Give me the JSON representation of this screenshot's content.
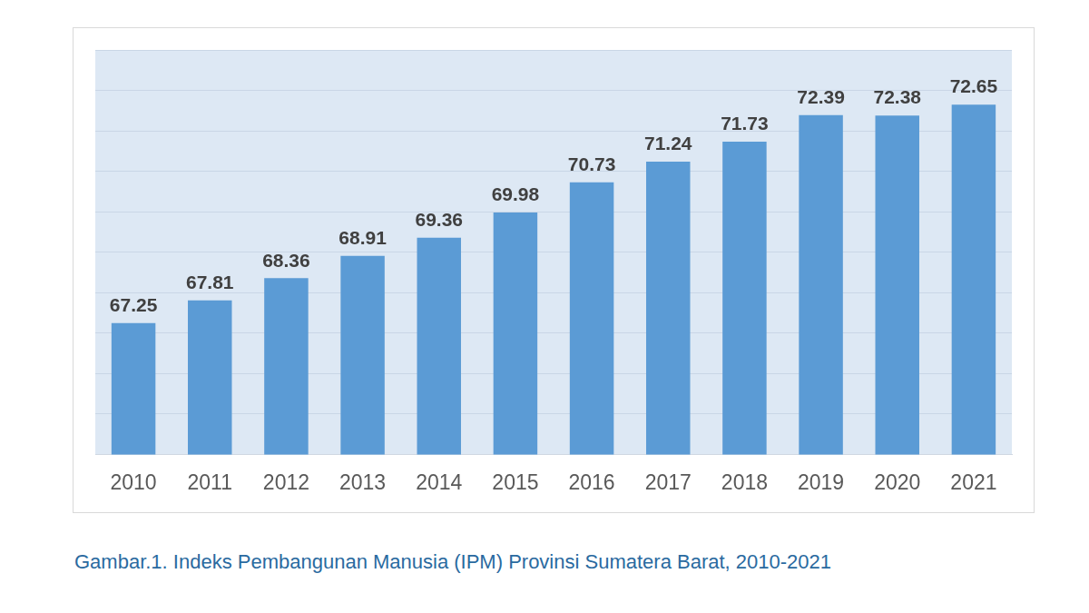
{
  "chart_data": {
    "type": "bar",
    "title": "Gambar.1. Indeks Pembangunan Manusia (IPM) Provinsi Sumatera Barat, 2010-2021",
    "categories": [
      "2010",
      "2011",
      "2012",
      "2013",
      "2014",
      "2015",
      "2016",
      "2017",
      "2018",
      "2019",
      "2020",
      "2021"
    ],
    "values": [
      67.25,
      67.81,
      68.36,
      68.91,
      69.36,
      69.98,
      70.73,
      71.24,
      71.73,
      72.39,
      72.38,
      72.65
    ],
    "color": "#5b9bd5",
    "ylim": [
      64,
      74
    ],
    "yticks": [
      64,
      65,
      66,
      67,
      68,
      69,
      70,
      71,
      72,
      73,
      74
    ],
    "grid": true,
    "data_labels": true,
    "tick_labels": "x"
  }
}
